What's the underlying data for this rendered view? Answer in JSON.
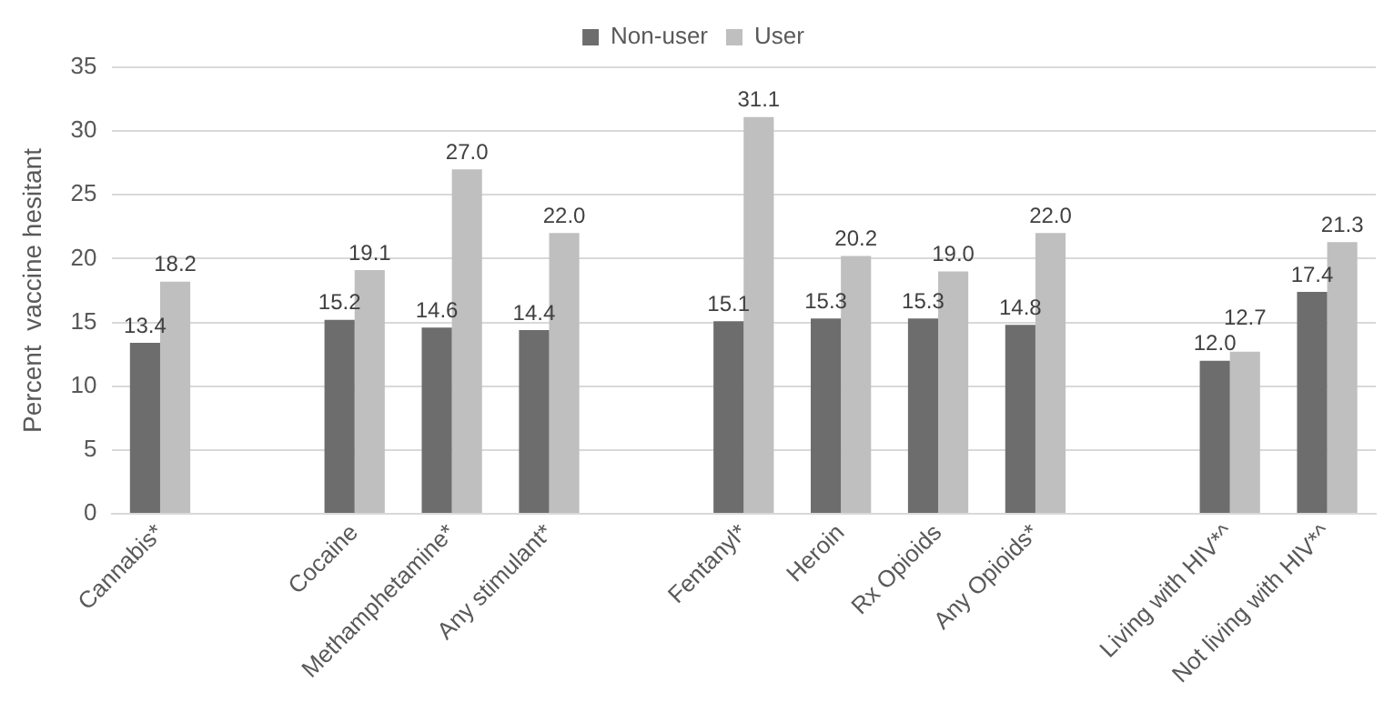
{
  "chart_data": {
    "type": "bar",
    "ylabel": "Percent  vaccine hesitant",
    "categories": [
      "Cannabis*",
      null,
      "Cocaine",
      "Methamphetamine*",
      "Any stimulant*",
      null,
      "Fentanyl*",
      "Heroin",
      "Rx Opioids",
      "Any Opioids*",
      null,
      "Living with HIV*^",
      "Not living with HIV*^"
    ],
    "series": [
      {
        "name": "Non-user",
        "color": "#6d6d6d",
        "values": [
          13.4,
          null,
          15.2,
          14.6,
          14.4,
          null,
          15.1,
          15.3,
          15.3,
          14.8,
          null,
          12.0,
          17.4
        ],
        "value_labels": [
          "13.4",
          null,
          "15.2",
          "14.6",
          "14.4",
          null,
          "15.1",
          "15.3",
          "15.3",
          "14.8",
          null,
          "12.0",
          "17.4"
        ]
      },
      {
        "name": "User",
        "color": "#bfbfbf",
        "values": [
          18.2,
          null,
          19.1,
          27.0,
          22.0,
          null,
          31.1,
          20.2,
          19.0,
          22.0,
          null,
          12.7,
          21.3
        ],
        "value_labels": [
          "18.2",
          null,
          "19.1",
          "27.0",
          "22.0",
          null,
          "31.1",
          "20.2",
          "19.0",
          "22.0",
          null,
          "12.7",
          "21.3"
        ]
      }
    ],
    "ylim": [
      0,
      35
    ],
    "yticks": [
      0,
      5,
      10,
      15,
      20,
      25,
      30,
      35
    ],
    "grid": "y",
    "legend": "top"
  }
}
